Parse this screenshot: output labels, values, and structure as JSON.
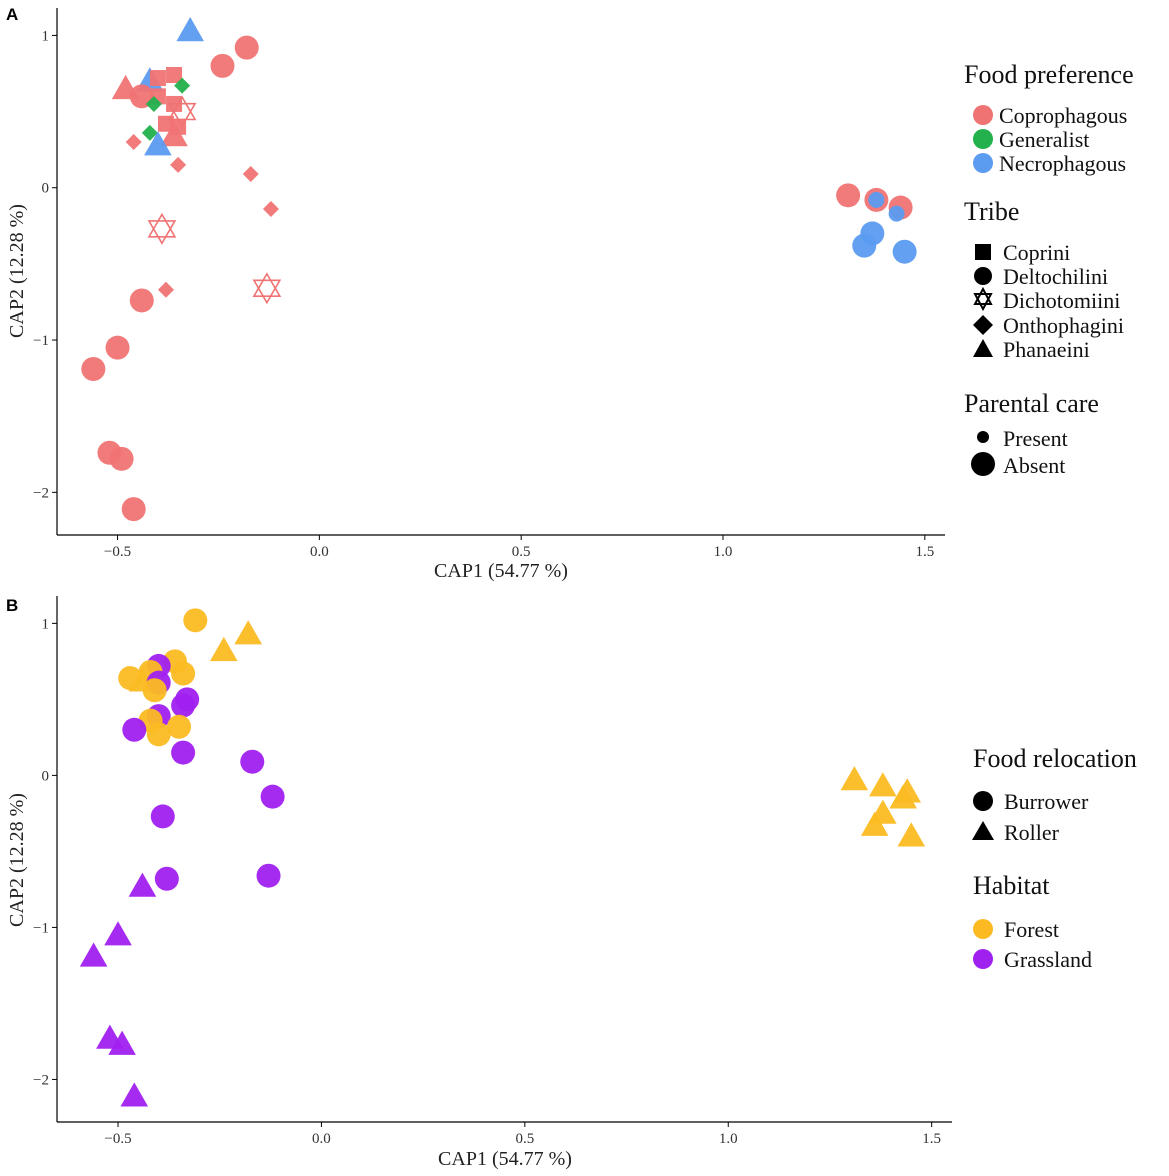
{
  "colors": {
    "coprophagous": "#F07373",
    "generalist": "#22B14C",
    "necrophagous": "#5B9BF0",
    "forest": "#FBBA22",
    "grassland": "#A020F0",
    "black": "#000000"
  },
  "chart_data": [
    {
      "panel": "A",
      "type": "scatter",
      "xlabel": "CAP1 (54.77 %)",
      "ylabel": "CAP2 (12.28 %)",
      "xlim": [
        -0.65,
        1.55
      ],
      "ylim": [
        -2.28,
        1.18
      ],
      "xticks": [
        -0.5,
        0.0,
        0.5,
        1.0,
        1.5
      ],
      "xtick_labels": [
        "−0.5",
        "0.0",
        "0.5",
        "1.0",
        "1.5"
      ],
      "yticks": [
        1,
        0,
        -1,
        -2
      ],
      "ytick_labels": [
        "1",
        "0",
        "−1",
        "−2"
      ],
      "grid": false,
      "points": [
        {
          "x": -0.32,
          "y": 1.03,
          "food": "Necrophagous",
          "tribe": "Phanaeini",
          "care": "Absent"
        },
        {
          "x": -0.18,
          "y": 0.92,
          "food": "Coprophagous",
          "tribe": "Deltochilini",
          "care": "Absent"
        },
        {
          "x": -0.24,
          "y": 0.8,
          "food": "Coprophagous",
          "tribe": "Deltochilini",
          "care": "Absent"
        },
        {
          "x": -0.48,
          "y": 0.65,
          "food": "Coprophagous",
          "tribe": "Phanaeini",
          "care": "Absent"
        },
        {
          "x": -0.42,
          "y": 0.7,
          "food": "Necrophagous",
          "tribe": "Phanaeini",
          "care": "Absent"
        },
        {
          "x": -0.4,
          "y": 0.72,
          "food": "Coprophagous",
          "tribe": "Coprini",
          "care": "Present"
        },
        {
          "x": -0.36,
          "y": 0.74,
          "food": "Coprophagous",
          "tribe": "Coprini",
          "care": "Present"
        },
        {
          "x": -0.44,
          "y": 0.6,
          "food": "Coprophagous",
          "tribe": "Deltochilini",
          "care": "Absent"
        },
        {
          "x": -0.4,
          "y": 0.6,
          "food": "Coprophagous",
          "tribe": "Coprini",
          "care": "Present"
        },
        {
          "x": -0.34,
          "y": 0.67,
          "food": "Generalist",
          "tribe": "Onthophagini",
          "care": "Present"
        },
        {
          "x": -0.41,
          "y": 0.55,
          "food": "Generalist",
          "tribe": "Onthophagini",
          "care": "Present"
        },
        {
          "x": -0.36,
          "y": 0.55,
          "food": "Coprophagous",
          "tribe": "Coprini",
          "care": "Present"
        },
        {
          "x": -0.34,
          "y": 0.5,
          "food": "Coprophagous",
          "tribe": "Dichotomiini",
          "care": "Absent"
        },
        {
          "x": -0.38,
          "y": 0.42,
          "food": "Coprophagous",
          "tribe": "Coprini",
          "care": "Present"
        },
        {
          "x": -0.35,
          "y": 0.4,
          "food": "Coprophagous",
          "tribe": "Coprini",
          "care": "Present"
        },
        {
          "x": -0.42,
          "y": 0.36,
          "food": "Generalist",
          "tribe": "Onthophagini",
          "care": "Present"
        },
        {
          "x": -0.36,
          "y": 0.34,
          "food": "Coprophagous",
          "tribe": "Phanaeini",
          "care": "Absent"
        },
        {
          "x": -0.46,
          "y": 0.3,
          "food": "Coprophagous",
          "tribe": "Onthophagini",
          "care": "Present"
        },
        {
          "x": -0.4,
          "y": 0.28,
          "food": "Necrophagous",
          "tribe": "Phanaeini",
          "care": "Absent"
        },
        {
          "x": -0.35,
          "y": 0.15,
          "food": "Coprophagous",
          "tribe": "Onthophagini",
          "care": "Present"
        },
        {
          "x": -0.17,
          "y": 0.09,
          "food": "Coprophagous",
          "tribe": "Onthophagini",
          "care": "Present"
        },
        {
          "x": -0.12,
          "y": -0.14,
          "food": "Coprophagous",
          "tribe": "Onthophagini",
          "care": "Present"
        },
        {
          "x": -0.39,
          "y": -0.27,
          "food": "Coprophagous",
          "tribe": "Dichotomiini",
          "care": "Absent"
        },
        {
          "x": -0.13,
          "y": -0.66,
          "food": "Coprophagous",
          "tribe": "Dichotomiini",
          "care": "Absent"
        },
        {
          "x": -0.38,
          "y": -0.67,
          "food": "Coprophagous",
          "tribe": "Onthophagini",
          "care": "Present"
        },
        {
          "x": -0.44,
          "y": -0.74,
          "food": "Coprophagous",
          "tribe": "Deltochilini",
          "care": "Absent"
        },
        {
          "x": -0.5,
          "y": -1.05,
          "food": "Coprophagous",
          "tribe": "Deltochilini",
          "care": "Absent"
        },
        {
          "x": -0.56,
          "y": -1.19,
          "food": "Coprophagous",
          "tribe": "Deltochilini",
          "care": "Absent"
        },
        {
          "x": -0.52,
          "y": -1.74,
          "food": "Coprophagous",
          "tribe": "Deltochilini",
          "care": "Absent"
        },
        {
          "x": -0.49,
          "y": -1.78,
          "food": "Coprophagous",
          "tribe": "Deltochilini",
          "care": "Absent"
        },
        {
          "x": -0.46,
          "y": -2.11,
          "food": "Coprophagous",
          "tribe": "Deltochilini",
          "care": "Absent"
        },
        {
          "x": 1.31,
          "y": -0.05,
          "food": "Coprophagous",
          "tribe": "Deltochilini",
          "care": "Absent"
        },
        {
          "x": 1.38,
          "y": -0.08,
          "food": "Coprophagous",
          "tribe": "Deltochilini",
          "care": "Absent"
        },
        {
          "x": 1.38,
          "y": -0.08,
          "food": "Necrophagous",
          "tribe": "Deltochilini",
          "care": "Present"
        },
        {
          "x": 1.44,
          "y": -0.13,
          "food": "Coprophagous",
          "tribe": "Deltochilini",
          "care": "Absent"
        },
        {
          "x": 1.43,
          "y": -0.17,
          "food": "Necrophagous",
          "tribe": "Deltochilini",
          "care": "Present"
        },
        {
          "x": 1.37,
          "y": -0.3,
          "food": "Necrophagous",
          "tribe": "Deltochilini",
          "care": "Absent"
        },
        {
          "x": 1.35,
          "y": -0.38,
          "food": "Necrophagous",
          "tribe": "Deltochilini",
          "care": "Absent"
        },
        {
          "x": 1.45,
          "y": -0.42,
          "food": "Necrophagous",
          "tribe": "Deltochilini",
          "care": "Absent"
        }
      ],
      "legend": {
        "position": "right",
        "food": {
          "title": "Food preference",
          "items": [
            "Coprophagous",
            "Generalist",
            "Necrophagous"
          ]
        },
        "tribe": {
          "title": "Tribe",
          "items": [
            "Coprini",
            "Deltochilini",
            "Dichotomiini",
            "Onthophagini",
            "Phanaeini"
          ]
        },
        "care": {
          "title": "Parental care",
          "items": [
            "Present",
            "Absent"
          ]
        }
      }
    },
    {
      "panel": "B",
      "type": "scatter",
      "xlabel": "CAP1 (54.77 %)",
      "ylabel": "CAP2 (12.28 %)",
      "xlim": [
        -0.65,
        1.55
      ],
      "ylim": [
        -2.28,
        1.18
      ],
      "xticks": [
        -0.5,
        0.0,
        0.5,
        1.0,
        1.5
      ],
      "xtick_labels": [
        "−0.5",
        "0.0",
        "0.5",
        "1.0",
        "1.5"
      ],
      "yticks": [
        1,
        0,
        -1,
        -2
      ],
      "ytick_labels": [
        "1",
        "0",
        "−1",
        "−2"
      ],
      "grid": false,
      "points": [
        {
          "x": -0.31,
          "y": 1.02,
          "habitat": "Forest",
          "relocation": "Burrower"
        },
        {
          "x": -0.18,
          "y": 0.93,
          "habitat": "Forest",
          "relocation": "Roller"
        },
        {
          "x": -0.24,
          "y": 0.82,
          "habitat": "Forest",
          "relocation": "Roller"
        },
        {
          "x": -0.36,
          "y": 0.75,
          "habitat": "Forest",
          "relocation": "Burrower"
        },
        {
          "x": -0.4,
          "y": 0.72,
          "habitat": "Grassland",
          "relocation": "Burrower"
        },
        {
          "x": -0.42,
          "y": 0.68,
          "habitat": "Forest",
          "relocation": "Burrower"
        },
        {
          "x": -0.34,
          "y": 0.67,
          "habitat": "Forest",
          "relocation": "Burrower"
        },
        {
          "x": -0.47,
          "y": 0.64,
          "habitat": "Forest",
          "relocation": "Burrower"
        },
        {
          "x": -0.44,
          "y": 0.62,
          "habitat": "Forest",
          "relocation": "Roller"
        },
        {
          "x": -0.4,
          "y": 0.61,
          "habitat": "Grassland",
          "relocation": "Burrower"
        },
        {
          "x": -0.41,
          "y": 0.56,
          "habitat": "Forest",
          "relocation": "Burrower"
        },
        {
          "x": -0.33,
          "y": 0.5,
          "habitat": "Grassland",
          "relocation": "Burrower"
        },
        {
          "x": -0.34,
          "y": 0.46,
          "habitat": "Grassland",
          "relocation": "Burrower"
        },
        {
          "x": -0.4,
          "y": 0.39,
          "habitat": "Grassland",
          "relocation": "Burrower"
        },
        {
          "x": -0.42,
          "y": 0.36,
          "habitat": "Forest",
          "relocation": "Burrower"
        },
        {
          "x": -0.35,
          "y": 0.32,
          "habitat": "Forest",
          "relocation": "Burrower"
        },
        {
          "x": -0.46,
          "y": 0.3,
          "habitat": "Grassland",
          "relocation": "Burrower"
        },
        {
          "x": -0.4,
          "y": 0.27,
          "habitat": "Forest",
          "relocation": "Burrower"
        },
        {
          "x": -0.34,
          "y": 0.15,
          "habitat": "Grassland",
          "relocation": "Burrower"
        },
        {
          "x": -0.17,
          "y": 0.09,
          "habitat": "Grassland",
          "relocation": "Burrower"
        },
        {
          "x": -0.12,
          "y": -0.14,
          "habitat": "Grassland",
          "relocation": "Burrower"
        },
        {
          "x": -0.39,
          "y": -0.27,
          "habitat": "Grassland",
          "relocation": "Burrower"
        },
        {
          "x": -0.13,
          "y": -0.66,
          "habitat": "Grassland",
          "relocation": "Burrower"
        },
        {
          "x": -0.38,
          "y": -0.68,
          "habitat": "Grassland",
          "relocation": "Burrower"
        },
        {
          "x": -0.44,
          "y": -0.73,
          "habitat": "Grassland",
          "relocation": "Roller"
        },
        {
          "x": -0.5,
          "y": -1.05,
          "habitat": "Grassland",
          "relocation": "Roller"
        },
        {
          "x": -0.56,
          "y": -1.19,
          "habitat": "Grassland",
          "relocation": "Roller"
        },
        {
          "x": -0.52,
          "y": -1.73,
          "habitat": "Grassland",
          "relocation": "Roller"
        },
        {
          "x": -0.49,
          "y": -1.77,
          "habitat": "Grassland",
          "relocation": "Roller"
        },
        {
          "x": -0.46,
          "y": -2.11,
          "habitat": "Grassland",
          "relocation": "Roller"
        },
        {
          "x": 1.31,
          "y": -0.03,
          "habitat": "Forest",
          "relocation": "Roller"
        },
        {
          "x": 1.38,
          "y": -0.07,
          "habitat": "Forest",
          "relocation": "Roller"
        },
        {
          "x": 1.44,
          "y": -0.11,
          "habitat": "Forest",
          "relocation": "Roller"
        },
        {
          "x": 1.43,
          "y": -0.15,
          "habitat": "Forest",
          "relocation": "Roller"
        },
        {
          "x": 1.38,
          "y": -0.25,
          "habitat": "Forest",
          "relocation": "Roller"
        },
        {
          "x": 1.36,
          "y": -0.33,
          "habitat": "Forest",
          "relocation": "Roller"
        },
        {
          "x": 1.45,
          "y": -0.4,
          "habitat": "Forest",
          "relocation": "Roller"
        }
      ],
      "legend": {
        "position": "right",
        "relocation": {
          "title": "Food relocation",
          "items": [
            "Burrower",
            "Roller"
          ]
        },
        "habitat": {
          "title": "Habitat",
          "items": [
            "Forest",
            "Grassland"
          ]
        }
      }
    }
  ]
}
